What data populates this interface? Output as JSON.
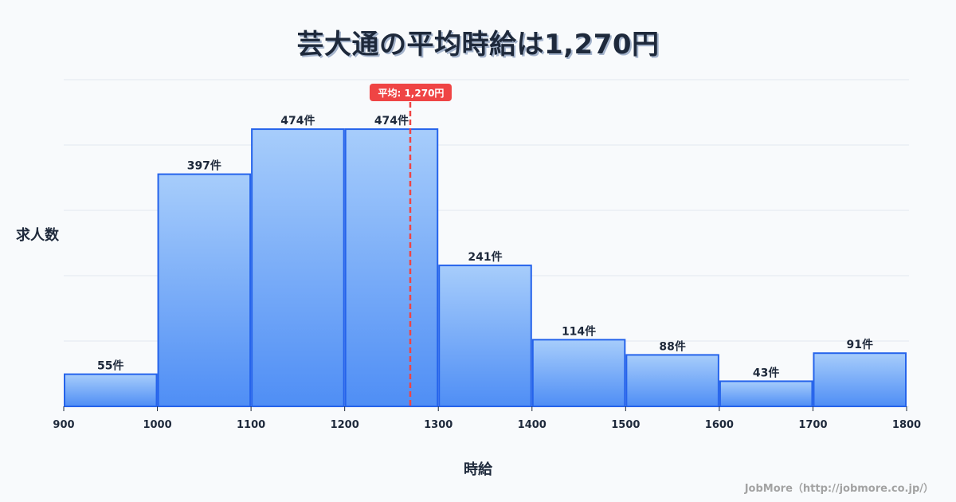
{
  "title": "芸大通の平均時給は1,270円",
  "y_axis_label": "求人数",
  "x_axis_label": "時給",
  "credit": "JobMore（http://jobmore.co.jp/）",
  "average_badge": "平均: 1,270円",
  "colors": {
    "bar_top": "#a7cdfb",
    "bar_bottom": "#4f8ef5",
    "bar_border": "#2563eb",
    "average_line": "#ef4444",
    "grid": "#e2e8f0",
    "text": "#1e293b"
  },
  "chart_data": {
    "type": "bar",
    "title": "芸大通の平均時給は1,270円",
    "xlabel": "時給",
    "ylabel": "求人数",
    "bins": [
      {
        "from": 900,
        "to": 1000,
        "value": 55,
        "label": "55件"
      },
      {
        "from": 1000,
        "to": 1100,
        "value": 397,
        "label": "397件"
      },
      {
        "from": 1100,
        "to": 1200,
        "value": 474,
        "label": "474件"
      },
      {
        "from": 1200,
        "to": 1300,
        "value": 474,
        "label": "474件"
      },
      {
        "from": 1300,
        "to": 1400,
        "value": 241,
        "label": "241件"
      },
      {
        "from": 1400,
        "to": 1500,
        "value": 114,
        "label": "114件"
      },
      {
        "from": 1500,
        "to": 1600,
        "value": 88,
        "label": "88件"
      },
      {
        "from": 1600,
        "to": 1700,
        "value": 43,
        "label": "43件"
      },
      {
        "from": 1700,
        "to": 1800,
        "value": 91,
        "label": "91件"
      }
    ],
    "categories": [
      "900-1000",
      "1000-1100",
      "1100-1200",
      "1200-1300",
      "1300-1400",
      "1400-1500",
      "1500-1600",
      "1600-1700",
      "1700-1800"
    ],
    "values": [
      55,
      397,
      474,
      474,
      241,
      114,
      88,
      43,
      91
    ],
    "x_ticks": [
      900,
      1000,
      1100,
      1200,
      1300,
      1400,
      1500,
      1600,
      1700,
      1800
    ],
    "xlim": [
      900,
      1800
    ],
    "ylim": [
      0,
      559
    ],
    "grid": true,
    "average": 1270,
    "average_label": "平均: 1,270円"
  }
}
